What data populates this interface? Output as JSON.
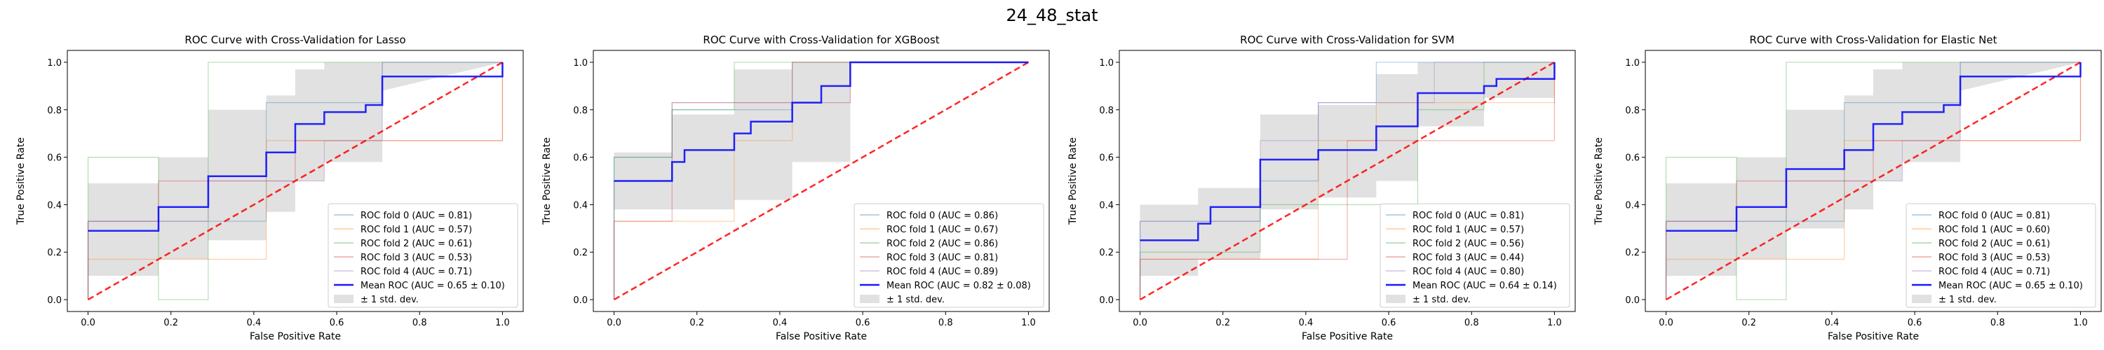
{
  "figure": {
    "suptitle": "24_48_stat"
  },
  "chart_data": [
    {
      "type": "line",
      "title": "ROC Curve with Cross-Validation for Lasso",
      "xlabel": "False Positive Rate",
      "ylabel": "True Positive Rate",
      "xlim": [
        -0.05,
        1.05
      ],
      "ylim": [
        -0.05,
        1.05
      ],
      "xticks": [
        "0.0",
        "0.2",
        "0.4",
        "0.6",
        "0.8",
        "1.0"
      ],
      "yticks": [
        "0.0",
        "0.2",
        "0.4",
        "0.6",
        "0.8",
        "1.0"
      ],
      "grid": false,
      "legend_position": "lower-right",
      "folds": [
        {
          "name": "ROC fold 0 (AUC = 0.81)",
          "color": "#1f77b4",
          "x": [
            0,
            0,
            0.43,
            0.43,
            0.71,
            0.71,
            1
          ],
          "y": [
            0,
            0.33,
            0.33,
            0.83,
            0.83,
            1,
            1
          ]
        },
        {
          "name": "ROC fold 1 (AUC = 0.57)",
          "color": "#ff7f0e",
          "x": [
            0,
            0,
            0.43,
            0.43,
            1,
            1
          ],
          "y": [
            0,
            0.17,
            0.17,
            0.67,
            0.67,
            1
          ]
        },
        {
          "name": "ROC fold 2 (AUC = 0.61)",
          "color": "#2ca02c",
          "x": [
            0,
            0,
            0.17,
            0.17,
            0.29,
            0.29,
            1
          ],
          "y": [
            0,
            0.6,
            0.6,
            0,
            0,
            1,
            1
          ]
        },
        {
          "name": "ROC fold 3 (AUC = 0.53)",
          "color": "#d62728",
          "x": [
            0,
            0,
            0.17,
            0.17,
            0.5,
            0.5,
            1,
            1
          ],
          "y": [
            0,
            0.33,
            0.33,
            0.5,
            0.5,
            0.67,
            0.67,
            1
          ]
        },
        {
          "name": "ROC fold 4 (AUC = 0.71)",
          "color": "#9467bd",
          "x": [
            0,
            0,
            0.29,
            0.29,
            0.57,
            0.57,
            0.71,
            0.71,
            1
          ],
          "y": [
            0,
            0.33,
            0.33,
            0.5,
            0.5,
            0.67,
            0.67,
            1,
            1
          ]
        }
      ],
      "mean": {
        "name": "Mean ROC (AUC = 0.65 ± 0.10)",
        "color": "#0000ff",
        "x": [
          0,
          0.17,
          0.17,
          0.29,
          0.29,
          0.43,
          0.43,
          0.5,
          0.5,
          0.57,
          0.57,
          0.67,
          0.67,
          0.71,
          0.71,
          1,
          1
        ],
        "y": [
          0.29,
          0.29,
          0.39,
          0.39,
          0.52,
          0.52,
          0.62,
          0.62,
          0.74,
          0.74,
          0.79,
          0.79,
          0.82,
          0.82,
          0.94,
          0.94,
          1
        ]
      },
      "std_band": {
        "name": "± 1 std. dev.",
        "color": "#bdbdbd",
        "x": [
          0,
          0.17,
          0.17,
          0.29,
          0.29,
          0.43,
          0.43,
          0.5,
          0.5,
          0.57,
          0.57,
          0.71,
          0.71,
          1
        ],
        "upper": [
          0.49,
          0.49,
          0.6,
          0.6,
          0.8,
          0.8,
          0.86,
          0.86,
          0.97,
          0.97,
          1,
          1,
          1,
          1
        ],
        "lower": [
          0.1,
          0.1,
          0.17,
          0.17,
          0.25,
          0.25,
          0.37,
          0.37,
          0.5,
          0.5,
          0.58,
          0.58,
          0.88,
          1
        ]
      },
      "chance": {
        "color": "#ff0000"
      }
    },
    {
      "type": "line",
      "title": "ROC Curve with Cross-Validation for XGBoost",
      "xlabel": "False Positive Rate",
      "ylabel": "True Positive Rate",
      "xlim": [
        -0.05,
        1.05
      ],
      "ylim": [
        -0.05,
        1.05
      ],
      "xticks": [
        "0.0",
        "0.2",
        "0.4",
        "0.6",
        "0.8",
        "1.0"
      ],
      "yticks": [
        "0.0",
        "0.2",
        "0.4",
        "0.6",
        "0.8",
        "1.0"
      ],
      "grid": false,
      "legend_position": "lower-right",
      "folds": [
        {
          "name": "ROC fold 0 (AUC = 0.86)",
          "color": "#1f77b4",
          "x": [
            0,
            0,
            0.14,
            0.14,
            0.43,
            0.43,
            1
          ],
          "y": [
            0,
            0.6,
            0.6,
            0.8,
            0.8,
            1,
            1
          ]
        },
        {
          "name": "ROC fold 1 (AUC = 0.67)",
          "color": "#ff7f0e",
          "x": [
            0,
            0,
            0.29,
            0.29,
            0.43,
            0.43,
            0.57,
            0.57,
            1
          ],
          "y": [
            0,
            0.33,
            0.33,
            0.67,
            0.67,
            0.83,
            0.83,
            1,
            1
          ]
        },
        {
          "name": "ROC fold 2 (AUC = 0.86)",
          "color": "#2ca02c",
          "x": [
            0,
            0,
            0.14,
            0.14,
            0.29,
            0.29,
            1
          ],
          "y": [
            0,
            0.6,
            0.6,
            0.8,
            0.8,
            1,
            1
          ]
        },
        {
          "name": "ROC fold 3 (AUC = 0.81)",
          "color": "#d62728",
          "x": [
            0,
            0,
            0.14,
            0.14,
            0.43,
            0.43,
            1
          ],
          "y": [
            0,
            0.33,
            0.33,
            0.83,
            0.83,
            1,
            1
          ]
        },
        {
          "name": "ROC fold 4 (AUC = 0.89)",
          "color": "#9467bd",
          "x": [
            0,
            0,
            0.14,
            0.14,
            0.29,
            0.29,
            0.57,
            0.57,
            1
          ],
          "y": [
            0,
            0.5,
            0.5,
            0.83,
            0.83,
            0.83,
            0.83,
            1,
            1
          ]
        }
      ],
      "mean": {
        "name": "Mean ROC (AUC = 0.82 ± 0.08)",
        "color": "#0000ff",
        "x": [
          0,
          0.14,
          0.14,
          0.17,
          0.17,
          0.29,
          0.29,
          0.33,
          0.33,
          0.43,
          0.43,
          0.5,
          0.5,
          0.57,
          0.57,
          1
        ],
        "y": [
          0.5,
          0.5,
          0.58,
          0.58,
          0.63,
          0.63,
          0.7,
          0.7,
          0.75,
          0.75,
          0.83,
          0.83,
          0.9,
          0.9,
          1,
          1
        ]
      },
      "std_band": {
        "name": "± 1 std. dev.",
        "color": "#bdbdbd",
        "x": [
          0,
          0.14,
          0.14,
          0.29,
          0.29,
          0.43,
          0.43,
          0.57,
          0.57,
          1
        ],
        "upper": [
          0.62,
          0.62,
          0.78,
          0.78,
          0.97,
          0.97,
          1,
          1,
          1,
          1
        ],
        "lower": [
          0.38,
          0.38,
          0.38,
          0.38,
          0.42,
          0.42,
          0.58,
          0.58,
          1,
          1
        ]
      },
      "chance": {
        "color": "#ff0000"
      }
    },
    {
      "type": "line",
      "title": "ROC Curve with Cross-Validation for SVM",
      "xlabel": "False Positive Rate",
      "ylabel": "True Positive Rate",
      "xlim": [
        -0.05,
        1.05
      ],
      "ylim": [
        -0.05,
        1.05
      ],
      "xticks": [
        "0.0",
        "0.2",
        "0.4",
        "0.6",
        "0.8",
        "1.0"
      ],
      "yticks": [
        "0.0",
        "0.2",
        "0.4",
        "0.6",
        "0.8",
        "1.0"
      ],
      "grid": false,
      "legend_position": "lower-right",
      "folds": [
        {
          "name": "ROC fold 0 (AUC = 0.81)",
          "color": "#1f77b4",
          "x": [
            0,
            0,
            0.29,
            0.29,
            0.43,
            0.43,
            0.57,
            0.57,
            1
          ],
          "y": [
            0,
            0.33,
            0.33,
            0.5,
            0.5,
            0.83,
            0.83,
            1,
            1
          ]
        },
        {
          "name": "ROC fold 1 (AUC = 0.57)",
          "color": "#ff7f0e",
          "x": [
            0,
            0,
            0.43,
            0.43,
            0.57,
            0.57,
            1,
            1
          ],
          "y": [
            0,
            0.17,
            0.17,
            0.67,
            0.67,
            0.83,
            0.83,
            1
          ]
        },
        {
          "name": "ROC fold 2 (AUC = 0.56)",
          "color": "#2ca02c",
          "x": [
            0,
            0,
            0.29,
            0.29,
            0.67,
            0.67,
            0.83,
            0.83,
            1
          ],
          "y": [
            0,
            0.2,
            0.2,
            0.4,
            0.4,
            0.8,
            0.8,
            1,
            1
          ]
        },
        {
          "name": "ROC fold 3 (AUC = 0.44)",
          "color": "#d62728",
          "x": [
            0,
            0,
            0.5,
            0.5,
            1,
            1
          ],
          "y": [
            0,
            0.17,
            0.17,
            0.67,
            0.67,
            1
          ]
        },
        {
          "name": "ROC fold 4 (AUC = 0.80)",
          "color": "#9467bd",
          "x": [
            0,
            0,
            0.29,
            0.29,
            0.43,
            0.43,
            0.71,
            0.71,
            1
          ],
          "y": [
            0,
            0.33,
            0.33,
            0.67,
            0.67,
            0.83,
            0.83,
            1,
            1
          ]
        }
      ],
      "mean": {
        "name": "Mean ROC (AUC = 0.64 ± 0.14)",
        "color": "#0000ff",
        "x": [
          0,
          0.14,
          0.14,
          0.17,
          0.17,
          0.29,
          0.29,
          0.43,
          0.43,
          0.57,
          0.57,
          0.67,
          0.67,
          0.83,
          0.83,
          0.86,
          0.86,
          1,
          1
        ],
        "y": [
          0.25,
          0.25,
          0.32,
          0.32,
          0.39,
          0.39,
          0.59,
          0.59,
          0.63,
          0.63,
          0.73,
          0.73,
          0.87,
          0.87,
          0.9,
          0.9,
          0.93,
          0.93,
          1
        ]
      },
      "std_band": {
        "name": "± 1 std. dev.",
        "color": "#bdbdbd",
        "x": [
          0,
          0.14,
          0.14,
          0.29,
          0.29,
          0.43,
          0.43,
          0.57,
          0.57,
          0.67,
          0.67,
          0.83,
          0.83,
          1
        ],
        "upper": [
          0.4,
          0.4,
          0.47,
          0.47,
          0.78,
          0.78,
          0.82,
          0.82,
          0.95,
          0.95,
          1,
          1,
          1,
          1
        ],
        "lower": [
          0.1,
          0.1,
          0.17,
          0.17,
          0.38,
          0.38,
          0.43,
          0.43,
          0.5,
          0.5,
          0.73,
          0.73,
          0.85,
          0.85
        ]
      },
      "chance": {
        "color": "#ff0000"
      }
    },
    {
      "type": "line",
      "title": "ROC Curve with Cross-Validation for Elastic Net",
      "xlabel": "False Positive Rate",
      "ylabel": "True Positive Rate",
      "xlim": [
        -0.05,
        1.05
      ],
      "ylim": [
        -0.05,
        1.05
      ],
      "xticks": [
        "0.0",
        "0.2",
        "0.4",
        "0.6",
        "0.8",
        "1.0"
      ],
      "yticks": [
        "0.0",
        "0.2",
        "0.4",
        "0.6",
        "0.8",
        "1.0"
      ],
      "grid": false,
      "legend_position": "lower-right",
      "folds": [
        {
          "name": "ROC fold 0 (AUC = 0.81)",
          "color": "#1f77b4",
          "x": [
            0,
            0,
            0.43,
            0.43,
            0.71,
            0.71,
            1
          ],
          "y": [
            0,
            0.33,
            0.33,
            0.83,
            0.83,
            1,
            1
          ]
        },
        {
          "name": "ROC fold 1 (AUC = 0.60)",
          "color": "#ff7f0e",
          "x": [
            0,
            0,
            0.43,
            0.43,
            1,
            1
          ],
          "y": [
            0,
            0.17,
            0.17,
            0.67,
            0.67,
            1
          ]
        },
        {
          "name": "ROC fold 2 (AUC = 0.61)",
          "color": "#2ca02c",
          "x": [
            0,
            0,
            0.17,
            0.17,
            0.29,
            0.29,
            1
          ],
          "y": [
            0,
            0.6,
            0.6,
            0,
            0,
            1,
            1
          ]
        },
        {
          "name": "ROC fold 3 (AUC = 0.53)",
          "color": "#d62728",
          "x": [
            0,
            0,
            0.17,
            0.17,
            0.5,
            0.5,
            1,
            1
          ],
          "y": [
            0,
            0.33,
            0.33,
            0.5,
            0.5,
            0.67,
            0.67,
            1
          ]
        },
        {
          "name": "ROC fold 4 (AUC = 0.71)",
          "color": "#9467bd",
          "x": [
            0,
            0,
            0.29,
            0.29,
            0.57,
            0.57,
            0.71,
            0.71,
            1
          ],
          "y": [
            0,
            0.33,
            0.33,
            0.5,
            0.5,
            0.67,
            0.67,
            1,
            1
          ]
        }
      ],
      "mean": {
        "name": "Mean ROC (AUC = 0.65 ± 0.10)",
        "color": "#0000ff",
        "x": [
          0,
          0.17,
          0.17,
          0.29,
          0.29,
          0.43,
          0.43,
          0.5,
          0.5,
          0.57,
          0.57,
          0.67,
          0.67,
          0.71,
          0.71,
          1,
          1
        ],
        "y": [
          0.29,
          0.29,
          0.39,
          0.39,
          0.55,
          0.55,
          0.63,
          0.63,
          0.74,
          0.74,
          0.79,
          0.79,
          0.82,
          0.82,
          0.94,
          0.94,
          1
        ]
      },
      "std_band": {
        "name": "± 1 std. dev.",
        "color": "#bdbdbd",
        "x": [
          0,
          0.17,
          0.17,
          0.29,
          0.29,
          0.43,
          0.43,
          0.5,
          0.5,
          0.57,
          0.57,
          0.71,
          0.71,
          1
        ],
        "upper": [
          0.49,
          0.49,
          0.6,
          0.6,
          0.8,
          0.8,
          0.86,
          0.86,
          0.97,
          0.97,
          1,
          1,
          1,
          1
        ],
        "lower": [
          0.1,
          0.1,
          0.17,
          0.17,
          0.3,
          0.3,
          0.38,
          0.38,
          0.5,
          0.5,
          0.58,
          0.58,
          0.88,
          1
        ]
      },
      "chance": {
        "color": "#ff0000"
      }
    }
  ]
}
